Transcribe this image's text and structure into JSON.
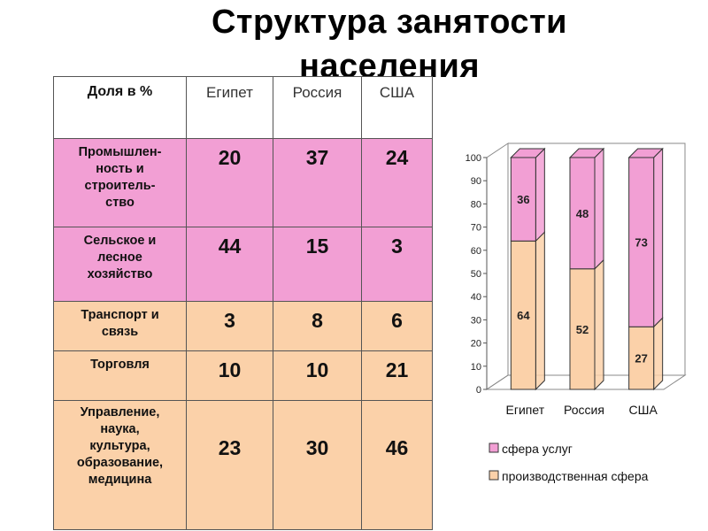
{
  "title_line1": "Структура занятости",
  "title_line2": "населения",
  "table": {
    "headers": [
      "Доля в %",
      "Египет",
      "Россия",
      "США"
    ],
    "rows": [
      {
        "label": "Промышлен-\nность и\nстроитель-\nство",
        "values": [
          "20",
          "37",
          "24"
        ]
      },
      {
        "label": "Сельское и\nлесное\nхозяйство",
        "values": [
          "44",
          "15",
          "3"
        ]
      },
      {
        "label": "Транспорт и\nсвязь",
        "values": [
          "3",
          "8",
          "6"
        ]
      },
      {
        "label": "Торговля",
        "values": [
          "10",
          "10",
          "21"
        ]
      },
      {
        "label": "Управление,\nнаука,\nкультура,\nобразование,\nмедицина",
        "values": [
          "23",
          "30",
          "46"
        ]
      }
    ]
  },
  "chart_data": {
    "type": "bar",
    "stacked": true,
    "categories": [
      "Египет",
      "Россия",
      "США"
    ],
    "series": [
      {
        "name": "производственная сфера",
        "values": [
          64,
          52,
          27
        ],
        "color": "#fbd1a9"
      },
      {
        "name": "сфера услуг",
        "values": [
          36,
          48,
          73
        ],
        "color": "#f29fd4"
      }
    ],
    "ylim": [
      0,
      100
    ],
    "yticks": [
      0,
      10,
      20,
      30,
      40,
      50,
      60,
      70,
      80,
      90,
      100
    ],
    "legend_order": [
      "сфера услуг",
      "производственная сфера"
    ],
    "legend_position": "bottom"
  }
}
